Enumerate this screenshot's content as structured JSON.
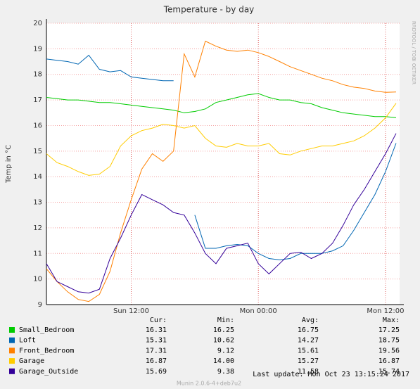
{
  "chart_data": {
    "type": "line",
    "title": "Temperature - by day",
    "y_label": "Temp in °C",
    "side_label": "RRDTOOL / TOBI OETIKER",
    "x": [
      4,
      5,
      6,
      7,
      8,
      9,
      10,
      11,
      12,
      13,
      14,
      15,
      16,
      17,
      18,
      19,
      20,
      21,
      22,
      23,
      24,
      25,
      26,
      27,
      28,
      29,
      30,
      31,
      32,
      33,
      34,
      35,
      36,
      37
    ],
    "xlim": [
      4,
      37.33
    ],
    "xticks": [
      {
        "value": 12,
        "label": "Sun 12:00"
      },
      {
        "value": 24,
        "label": "Mon 00:00"
      },
      {
        "value": 36,
        "label": "Mon 12:00"
      }
    ],
    "ylim": [
      9,
      20
    ],
    "yticks": [
      9,
      10,
      11,
      12,
      13,
      14,
      15,
      16,
      17,
      18,
      19,
      20
    ],
    "grid": true,
    "stat_headers": [
      "Cur:",
      "Min:",
      "Avg:",
      "Max:"
    ],
    "series": [
      {
        "name": "Small_Bedroom",
        "color": "#00cc00",
        "values": [
          17.1,
          17.05,
          17.0,
          17.0,
          16.95,
          16.9,
          16.9,
          16.85,
          16.8,
          16.75,
          16.7,
          16.65,
          16.6,
          16.5,
          16.55,
          16.65,
          16.9,
          17.0,
          17.1,
          17.2,
          17.25,
          17.1,
          17.0,
          17.0,
          16.9,
          16.85,
          16.7,
          16.6,
          16.5,
          16.45,
          16.4,
          16.35,
          16.35,
          16.31
        ],
        "stats": [
          "16.31",
          "16.25",
          "16.75",
          "17.25"
        ]
      },
      {
        "name": "Loft",
        "color": "#0066b3",
        "values": [
          18.6,
          18.55,
          18.5,
          18.4,
          18.75,
          18.2,
          18.1,
          18.15,
          17.9,
          17.85,
          17.8,
          17.75,
          17.75,
          null,
          12.5,
          11.2,
          11.2,
          11.3,
          11.35,
          11.3,
          11.0,
          10.8,
          10.75,
          10.8,
          11.0,
          11.0,
          11.0,
          11.1,
          11.3,
          11.9,
          12.6,
          13.3,
          14.2,
          15.31
        ],
        "stats": [
          "15.31",
          "10.62",
          "14.27",
          "18.75"
        ]
      },
      {
        "name": "Front_Bedroom",
        "color": "#ff8000",
        "values": [
          10.4,
          9.9,
          9.5,
          9.2,
          9.12,
          9.4,
          10.3,
          11.8,
          13.1,
          14.3,
          14.9,
          14.6,
          15.0,
          18.8,
          17.9,
          19.3,
          19.1,
          18.95,
          18.9,
          18.95,
          18.85,
          18.7,
          18.5,
          18.3,
          18.15,
          18.0,
          17.85,
          17.75,
          17.6,
          17.5,
          17.45,
          17.35,
          17.3,
          17.31
        ],
        "stats": [
          "17.31",
          "9.12",
          "15.61",
          "19.56"
        ]
      },
      {
        "name": "Garage",
        "color": "#ffcc00",
        "values": [
          14.9,
          14.55,
          14.4,
          14.2,
          14.05,
          14.1,
          14.4,
          15.2,
          15.6,
          15.8,
          15.9,
          16.05,
          16.0,
          15.9,
          16.0,
          15.5,
          15.2,
          15.15,
          15.3,
          15.2,
          15.2,
          15.3,
          14.9,
          14.85,
          15.0,
          15.1,
          15.2,
          15.2,
          15.3,
          15.4,
          15.6,
          15.9,
          16.3,
          16.87
        ],
        "stats": [
          "16.87",
          "14.00",
          "15.27",
          "16.87"
        ]
      },
      {
        "name": "Garage_Outside",
        "color": "#330099",
        "values": [
          10.6,
          9.9,
          9.7,
          9.5,
          9.45,
          9.6,
          10.8,
          11.6,
          12.5,
          13.3,
          13.1,
          12.9,
          12.6,
          12.5,
          11.8,
          11.0,
          10.6,
          11.2,
          11.3,
          11.4,
          10.6,
          10.2,
          10.6,
          11.0,
          11.05,
          10.8,
          11.0,
          11.4,
          12.1,
          12.9,
          13.5,
          14.2,
          14.9,
          15.69
        ],
        "stats": [
          "15.69",
          "9.38",
          "11.58",
          "15.74"
        ]
      }
    ],
    "last_update": "Last update: Mon Oct 23 13:15:24 2017",
    "footer": "Munin 2.0.6-4+deb7u2"
  }
}
